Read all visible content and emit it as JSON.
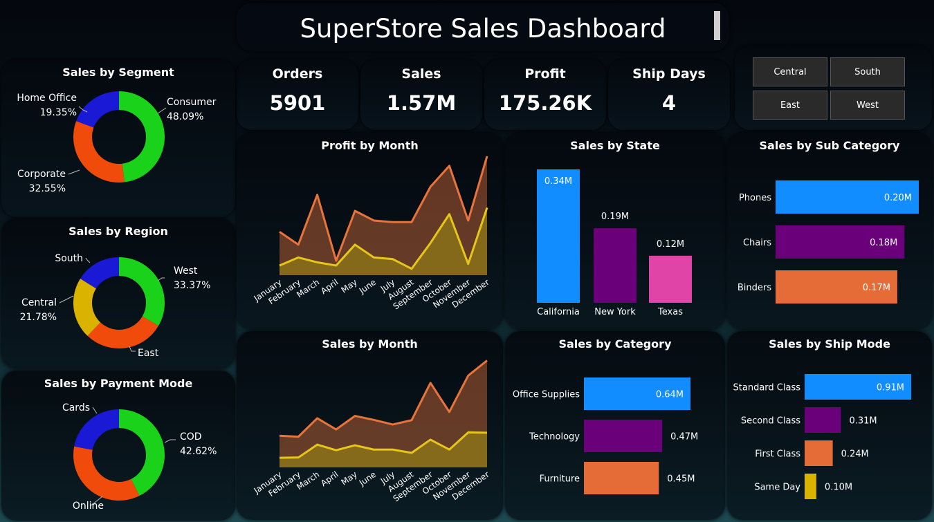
{
  "title": "SuperStore Sales Dashboard",
  "kpis": [
    {
      "label": "Orders",
      "value": "5901"
    },
    {
      "label": "Sales",
      "value": "1.57M"
    },
    {
      "label": "Profit",
      "value": "175.26K"
    },
    {
      "label": "Ship Days",
      "value": "4"
    }
  ],
  "region_slicer": [
    "Central",
    "South",
    "East",
    "West"
  ],
  "colors": {
    "green": "#19d219",
    "blue": "#1a1ad6",
    "orange": "#f04b0a",
    "gold": "#d9b300",
    "bar_blue": "#118dff",
    "bar_purple": "#6b007b",
    "bar_pink": "#e044a7",
    "bar_orange": "#e66c37",
    "line_orange": "#e8743b",
    "line_yellow": "#e6c619"
  },
  "chart_data": [
    {
      "id": "segment",
      "type": "pie",
      "title": "Sales by Segment",
      "slices": [
        {
          "label": "Consumer",
          "value": 48.09,
          "text": "48.09%",
          "color": "#19d219"
        },
        {
          "label": "Corporate",
          "value": 32.55,
          "text": "32.55%",
          "color": "#f04b0a"
        },
        {
          "label": "Home Office",
          "value": 19.35,
          "text": "19.35%",
          "color": "#1a1ad6"
        }
      ]
    },
    {
      "id": "region",
      "type": "pie",
      "title": "Sales by Region",
      "slices": [
        {
          "label": "West",
          "value": 33.37,
          "text": "33.37%",
          "color": "#19d219"
        },
        {
          "label": "East",
          "value": 28.75,
          "text": "28.75%",
          "color": "#f04b0a"
        },
        {
          "label": "Central",
          "value": 21.78,
          "text": "21.78%",
          "color": "#d9b300"
        },
        {
          "label": "South",
          "value": 16.1,
          "text": "16.1%",
          "color": "#1a1ad6"
        }
      ]
    },
    {
      "id": "payment",
      "type": "pie",
      "title": "Sales by Payment Mode",
      "slices": [
        {
          "label": "COD",
          "value": 42.62,
          "text": "42.62%",
          "color": "#19d219"
        },
        {
          "label": "Online",
          "value": 35.38,
          "text": "35.38%",
          "color": "#f04b0a"
        },
        {
          "label": "Cards",
          "value": 21.99,
          "text": "21.99%",
          "color": "#1a1ad6"
        }
      ]
    },
    {
      "id": "profit_month",
      "type": "area",
      "title": "Profit by Month",
      "categories": [
        "January",
        "February",
        "March",
        "April",
        "May",
        "June",
        "July",
        "August",
        "September",
        "October",
        "November",
        "December"
      ],
      "series": [
        {
          "values": [
            13.5,
            9.5,
            25,
            4.5,
            20,
            17,
            16.5,
            16.5,
            27.5,
            34,
            17,
            37
          ],
          "color": "#e8743b"
        },
        {
          "values": [
            3,
            5.5,
            4,
            3,
            9.5,
            5.5,
            5,
            2,
            10,
            19,
            3.5,
            21
          ],
          "color": "#e6c619"
        }
      ],
      "ylim": [
        0,
        40
      ]
    },
    {
      "id": "sales_month",
      "type": "area",
      "title": "Sales by Month",
      "categories": [
        "January",
        "February",
        "March",
        "April",
        "May",
        "June",
        "July",
        "August",
        "September",
        "October",
        "November",
        "December"
      ],
      "series": [
        {
          "values": [
            96,
            93,
            149,
            115,
            156,
            144,
            130,
            143,
            256,
            168,
            278,
            324
          ],
          "color": "#e8743b"
        },
        {
          "values": [
            29,
            30,
            69,
            52,
            67,
            54,
            54,
            44,
            84,
            54,
            106,
            105
          ],
          "color": "#e6c619"
        }
      ],
      "ylim": [
        0,
        350
      ]
    },
    {
      "id": "state",
      "type": "bar",
      "title": "Sales by State",
      "categories": [
        "California",
        "New York",
        "Texas"
      ],
      "values": [
        0.34,
        0.19,
        0.12
      ],
      "labels": [
        "0.34M",
        "0.19M",
        "0.12M"
      ],
      "colors": [
        "#118dff",
        "#6b007b",
        "#e044a7"
      ],
      "ylim": [
        0,
        0.34
      ]
    },
    {
      "id": "subcat",
      "type": "bar",
      "title": "Sales by Sub Category",
      "categories": [
        "Phones",
        "Chairs",
        "Binders"
      ],
      "values": [
        0.2,
        0.18,
        0.17
      ],
      "labels": [
        "0.20M",
        "0.18M",
        "0.17M"
      ],
      "colors": [
        "#118dff",
        "#6b007b",
        "#e66c37"
      ],
      "xlim": [
        0,
        0.2
      ]
    },
    {
      "id": "category",
      "type": "bar",
      "title": "Sales by Category",
      "categories": [
        "Office Supplies",
        "Technology",
        "Furniture"
      ],
      "values": [
        0.64,
        0.47,
        0.45
      ],
      "labels": [
        "0.64M",
        "0.47M",
        "0.45M"
      ],
      "colors": [
        "#118dff",
        "#6b007b",
        "#e66c37"
      ],
      "xlim": [
        0,
        0.64
      ]
    },
    {
      "id": "shipmode",
      "type": "bar",
      "title": "Sales by Ship Mode",
      "categories": [
        "Standard Class",
        "Second Class",
        "First Class",
        "Same Day"
      ],
      "values": [
        0.91,
        0.31,
        0.24,
        0.1
      ],
      "labels": [
        "0.91M",
        "0.31M",
        "0.24M",
        "0.10M"
      ],
      "colors": [
        "#118dff",
        "#6b007b",
        "#e66c37",
        "#d9b300"
      ],
      "xlim": [
        0,
        0.91
      ]
    }
  ]
}
